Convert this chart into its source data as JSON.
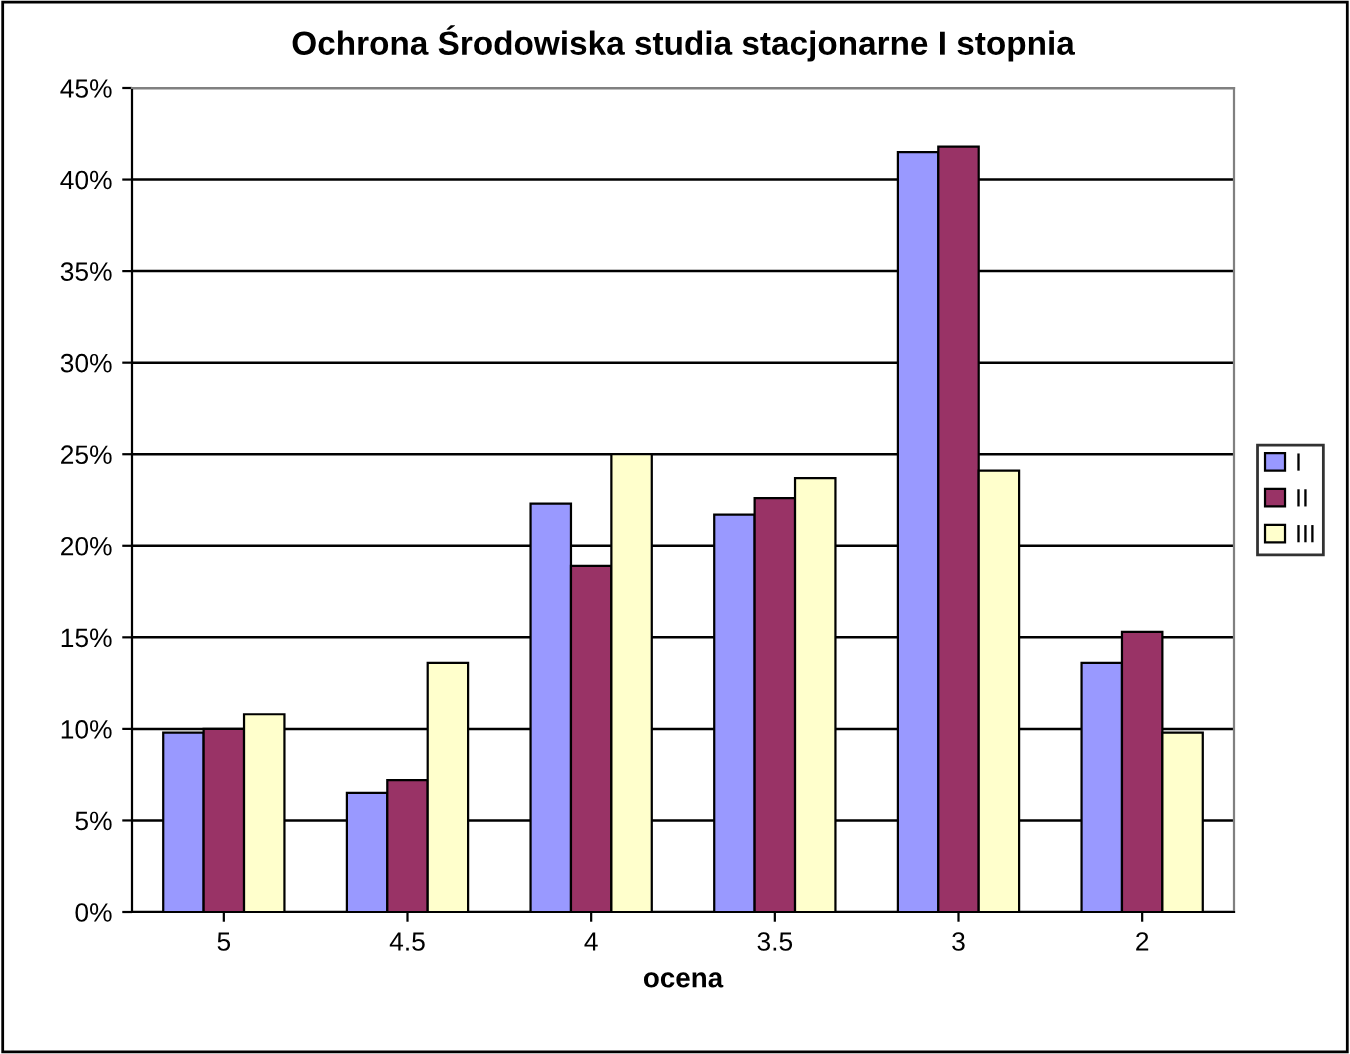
{
  "chart_data": {
    "type": "bar",
    "title": "Ochrona Środowiska studia stacjonarne I stopnia",
    "xlabel": "ocena",
    "categories": [
      "5",
      "4.5",
      "4",
      "3.5",
      "3",
      "2"
    ],
    "series": [
      {
        "name": "I",
        "color": "#9999ff",
        "values": [
          9.8,
          6.5,
          22.3,
          21.7,
          41.5,
          13.6
        ]
      },
      {
        "name": "II",
        "color": "#993366",
        "values": [
          10.0,
          7.2,
          18.9,
          22.6,
          41.8,
          15.3
        ]
      },
      {
        "name": "III",
        "color": "#ffffcc",
        "values": [
          10.8,
          13.6,
          25.0,
          23.7,
          24.1,
          9.8
        ]
      }
    ],
    "ylim": [
      0,
      45
    ],
    "yticks": [
      {
        "value": 0,
        "label": "0%"
      },
      {
        "value": 5,
        "label": "5%"
      },
      {
        "value": 10,
        "label": "10%"
      },
      {
        "value": 15,
        "label": "15%"
      },
      {
        "value": 20,
        "label": "20%"
      },
      {
        "value": 25,
        "label": "25%"
      },
      {
        "value": 30,
        "label": "30%"
      },
      {
        "value": 35,
        "label": "35%"
      },
      {
        "value": 40,
        "label": "40%"
      },
      {
        "value": 45,
        "label": "45%"
      }
    ],
    "grid": "y",
    "legend": "right"
  }
}
